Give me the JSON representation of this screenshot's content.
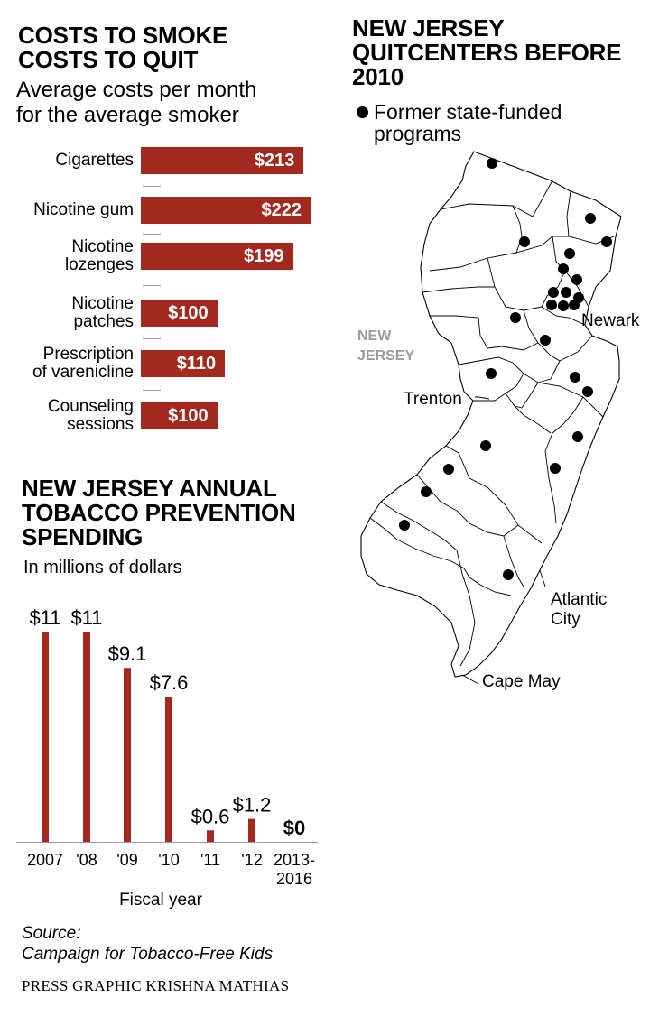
{
  "costs_chart": {
    "title_line1": "COSTS TO SMOKE",
    "title_line2": "COSTS TO QUIT",
    "subtitle_line1": "Average costs per month",
    "subtitle_line2": "for the average smoker"
  },
  "spending_chart": {
    "title_line1": "NEW JERSEY ANNUAL",
    "title_line2": "TOBACCO PREVENTION",
    "title_line3": "SPENDING",
    "subtitle": "In millions of dollars"
  },
  "map": {
    "title_line1": "NEW JERSEY",
    "title_line2": "QUITCENTERS BEFORE",
    "title_line3": "2010",
    "legend_line1": "Former state-funded",
    "legend_line2": "programs",
    "state_label_line1": "NEW",
    "state_label_line2": "JERSEY",
    "city_newark": "Newark",
    "city_trenton": "Trenton",
    "city_atlantic_line1": "Atlantic",
    "city_atlantic_line2": "City",
    "city_cape_may": "Cape May"
  },
  "source_label": "Source:",
  "source_name": "Campaign for Tobacco-Free Kids",
  "credit": "PRESS GRAPHIC KRISHNA MATHIAS",
  "colors": {
    "bar": "#a3281e",
    "map_fill": "#ffffff",
    "map_stroke": "#000000"
  },
  "chart_data": [
    {
      "type": "bar",
      "orientation": "horizontal",
      "title": "COSTS TO SMOKE COSTS TO QUIT",
      "subtitle": "Average costs per month for the average smoker",
      "categories": [
        [
          "Cigarettes"
        ],
        [
          "Nicotine gum"
        ],
        [
          "Nicotine",
          "lozenges"
        ],
        [
          "Nicotine",
          "patches"
        ],
        [
          "Prescription",
          "of varenicline"
        ],
        [
          "Counseling",
          "sessions"
        ]
      ],
      "values": [
        213,
        222,
        199,
        100,
        110,
        100
      ],
      "value_labels": [
        "$213",
        "$222",
        "$199",
        "$100",
        "$110",
        "$100"
      ]
    },
    {
      "type": "bar",
      "orientation": "vertical",
      "title": "NEW JERSEY ANNUAL TOBACCO PREVENTION SPENDING",
      "subtitle": "In millions of dollars",
      "xlabel": "Fiscal year",
      "categories": [
        [
          "2007"
        ],
        [
          "'08"
        ],
        [
          "'09"
        ],
        [
          "'10"
        ],
        [
          "'11"
        ],
        [
          "'12"
        ],
        [
          "2013-",
          "2016"
        ]
      ],
      "values": [
        11,
        11,
        9.1,
        7.6,
        0.6,
        1.2,
        0
      ],
      "value_labels": [
        "$11",
        "$11",
        "$9.1",
        "$7.6",
        "$0.6",
        "$1.2",
        "$0"
      ],
      "ylim": [
        0,
        11
      ]
    }
  ]
}
